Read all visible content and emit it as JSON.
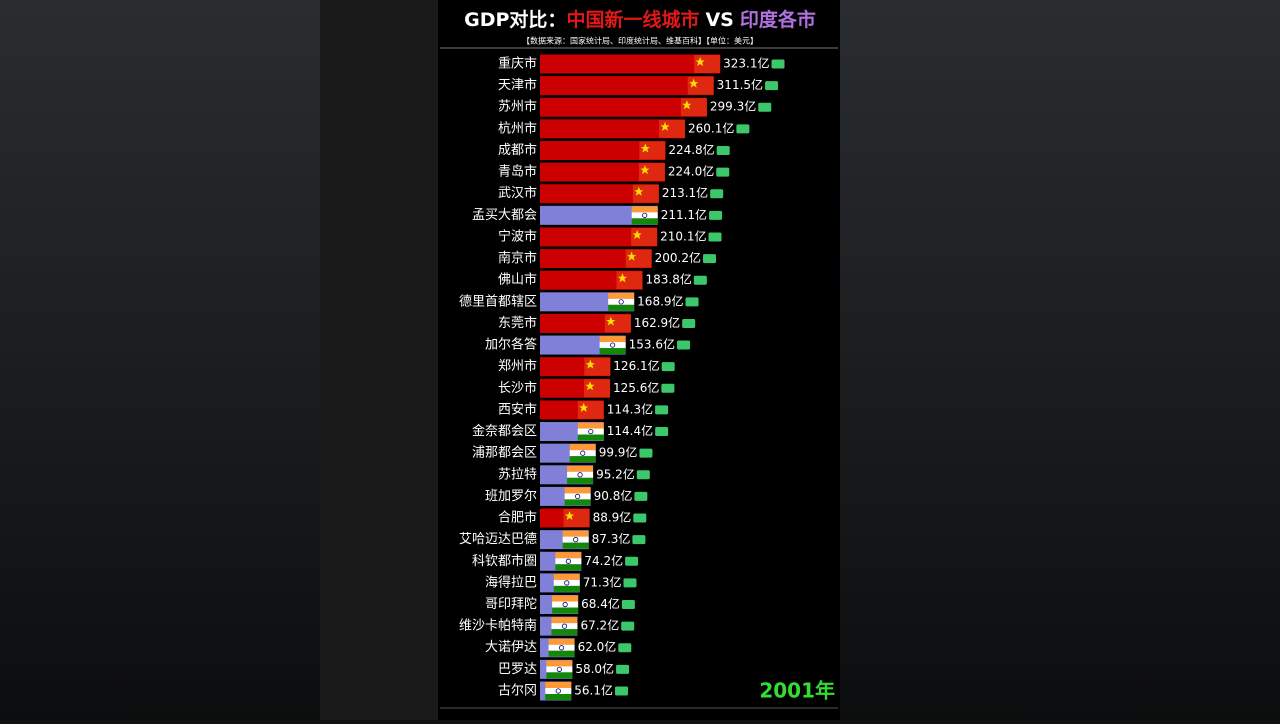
{
  "chart_data": {
    "type": "bar",
    "orientation": "horizontal",
    "title": [
      "GDP对比：",
      "中国新一线城市",
      "VS",
      "印度各市"
    ],
    "subtitle": "【数据来源：国家统计局、印度统计局、维基百科】【单位：美元】",
    "annotation": "2001年",
    "categories": [
      "重庆市",
      "天津市",
      "苏州市",
      "杭州市",
      "成都市",
      "青岛市",
      "武汉市",
      "孟买大都会",
      "宁波市",
      "南京市",
      "佛山市",
      "德里首都辖区",
      "东莞市",
      "加尔各答",
      "郑州市",
      "长沙市",
      "西安市",
      "金奈都会区",
      "浦那都会区",
      "苏拉特",
      "班加罗尔",
      "合肥市",
      "艾哈迈达巴德",
      "科钦都市圈",
      "海得拉巴",
      "哥印拜陀",
      "维沙卡帕特南",
      "大诺伊达",
      "巴罗达",
      "古尔冈"
    ],
    "values": [
      323.1,
      311.5,
      299.3,
      260.1,
      224.8,
      224.0,
      213.1,
      211.1,
      210.1,
      200.2,
      183.8,
      168.9,
      162.9,
      153.6,
      126.1,
      125.6,
      114.3,
      114.4,
      99.9,
      95.2,
      90.8,
      88.9,
      87.3,
      74.2,
      71.3,
      68.4,
      67.2,
      62.0,
      58.0,
      56.1
    ],
    "value_labels": [
      "323.1亿",
      "311.5亿",
      "299.3亿",
      "260.1亿",
      "224.8亿",
      "224.0亿",
      "213.1亿",
      "211.1亿",
      "210.1亿",
      "200.2亿",
      "183.8亿",
      "168.9亿",
      "162.9亿",
      "153.6亿",
      "126.1亿",
      "125.6亿",
      "114.3亿",
      "114.4亿",
      "99.9亿",
      "95.2亿",
      "90.8亿",
      "88.9亿",
      "87.3亿",
      "74.2亿",
      "71.3亿",
      "68.4亿",
      "67.2亿",
      "62.0亿",
      "58.0亿",
      "56.1亿"
    ],
    "colors": [
      "#cc0000",
      "#cc0000",
      "#cc0000",
      "#cc0000",
      "#cc0000",
      "#cc0000",
      "#cc0000",
      "#8080d8",
      "#cc0000",
      "#cc0000",
      "#cc0000",
      "#8080d8",
      "#cc0000",
      "#8080d8",
      "#cc0000",
      "#cc0000",
      "#cc0000",
      "#8080d8",
      "#8080d8",
      "#8080d8",
      "#8080d8",
      "#cc0000",
      "#8080d8",
      "#8080d8",
      "#8080d8",
      "#8080d8",
      "#8080d8",
      "#8080d8",
      "#8080d8",
      "#8080d8"
    ],
    "xlim": [
      0,
      330
    ]
  }
}
